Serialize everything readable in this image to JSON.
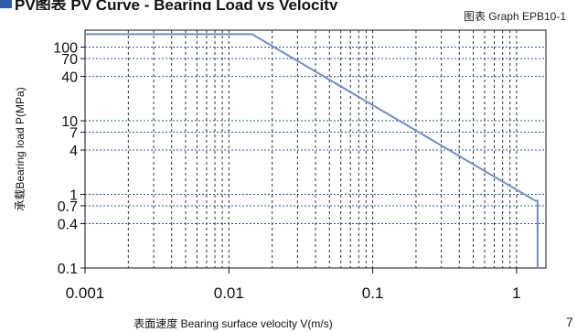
{
  "heading": {
    "text": "PV图表 PV Curve - Bearing Load vs Velocity"
  },
  "chart_data": {
    "type": "line",
    "title": "图表 Graph EPB10-1",
    "xlabel": "表面速度 Bearing surface velocity V(m/s)",
    "ylabel": "承载Bearing load P(MPa)",
    "x_scale": "log",
    "y_scale": "log",
    "xlim": [
      0.001,
      1.6
    ],
    "ylim": [
      0.1,
      170
    ],
    "x_ticks": [
      {
        "value": 0.001,
        "label": "0.001"
      },
      {
        "value": 0.01,
        "label": "0.01"
      },
      {
        "value": 0.1,
        "label": "0.1"
      },
      {
        "value": 1,
        "label": "1"
      }
    ],
    "y_ticks": [
      {
        "value": 100,
        "label": "100"
      },
      {
        "value": 70,
        "label": "70"
      },
      {
        "value": 40,
        "label": "40"
      },
      {
        "value": 10,
        "label": "10"
      },
      {
        "value": 7,
        "label": "7"
      },
      {
        "value": 4,
        "label": "4"
      },
      {
        "value": 1,
        "label": "1"
      },
      {
        "value": 0.7,
        "label": "0.7"
      },
      {
        "value": 0.4,
        "label": "0.4"
      },
      {
        "value": 0.1,
        "label": "0.1"
      }
    ],
    "grid": true,
    "series": [
      {
        "x": [
          0.001,
          0.0145,
          1.35,
          1.4,
          1.4
        ],
        "y": [
          150,
          150,
          0.82,
          0.82,
          0.1
        ]
      }
    ],
    "colors": {
      "line": "#6f8fc4",
      "grid_y": "#2a55b0",
      "grid_x": "#333333",
      "axis": "#111111"
    }
  },
  "page_number": "7"
}
